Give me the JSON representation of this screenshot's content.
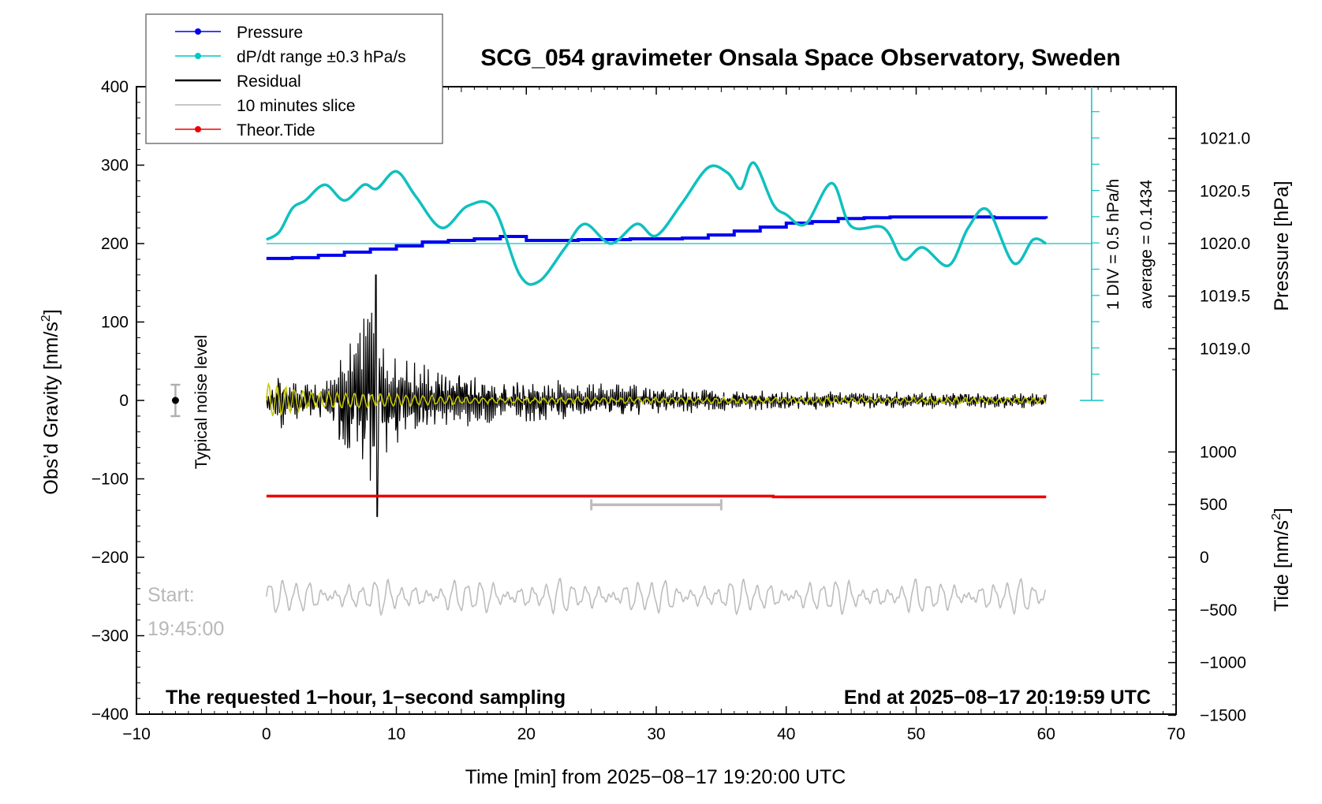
{
  "chart_data": {
    "type": "line",
    "title": "SCG_054 gravimeter Onsala Space Observatory, Sweden",
    "xlabel": "Time [min] from 2025−08−17 19:20:00 UTC",
    "ylabel_left_main": "Obs’d Gravity [nm/s",
    "ylabel_left_sup": "2",
    "ylabel_left_end": "]",
    "ylabel_right_top": "Pressure [hPa]",
    "ylabel_right_bottom_main": "Tide [nm/s",
    "ylabel_right_bottom_sup": "2",
    "ylabel_right_bottom_end": "]",
    "xlim": [
      -10,
      70
    ],
    "ylim": [
      -400,
      400
    ],
    "x_ticks": [
      "−10",
      "0",
      "10",
      "20",
      "30",
      "40",
      "50",
      "60",
      "70"
    ],
    "y_ticks": [
      "400",
      "300",
      "200",
      "100",
      "0",
      "−100",
      "−200",
      "−300",
      "−400"
    ],
    "pressure_ticks": [
      "1021.0",
      "1020.5",
      "1020.0",
      "1019.5",
      "1019.0"
    ],
    "tide_ticks": [
      "1000",
      "500",
      "0",
      "−500",
      "−1000",
      "−1500"
    ],
    "legend": [
      {
        "label": "Pressure",
        "color": "#0000ee",
        "marker": true
      },
      {
        "label": "dP/dt range ±0.3 hPa/s",
        "color": "#00c8c8",
        "marker": true
      },
      {
        "label": "Residual",
        "color": "#000000",
        "marker": false
      },
      {
        "label": "10 minutes slice",
        "color": "#b4b4b4",
        "marker": false
      },
      {
        "label": "Theor.Tide",
        "color": "#ee0000",
        "marker": true
      }
    ],
    "colors": {
      "pressure": "#0000ee",
      "dpdt": "#10c0c0",
      "residual": "#000000",
      "filtered": "#c8c800",
      "slice": "#bdbdbd",
      "tide": "#ee0000"
    },
    "pressure_series": {
      "name": "Pressure",
      "x": [
        0,
        2,
        4,
        6,
        8,
        10,
        12,
        14,
        16,
        18,
        20,
        22,
        24,
        26,
        28,
        30,
        32,
        34,
        36,
        38,
        40,
        42,
        44,
        46,
        48,
        50,
        52,
        54,
        56,
        58,
        60
      ],
      "values": [
        181,
        182,
        185,
        189,
        193,
        197,
        202,
        204,
        206,
        209,
        204,
        204,
        205,
        205,
        206,
        206,
        207,
        211,
        216,
        221,
        226,
        228,
        232,
        233,
        234,
        234,
        234,
        234,
        233,
        233,
        232
      ]
    },
    "dpdt_series": {
      "name": "dP/dt range ±0.3 hPa/s",
      "x": [
        0,
        1,
        2,
        3,
        4.5,
        6,
        7.5,
        8.5,
        10,
        11.5,
        13.5,
        15.5,
        17.5,
        19.5,
        21,
        23,
        24.5,
        26.5,
        28.5,
        30,
        32,
        34,
        35.5,
        36.5,
        37.5,
        39,
        40,
        41.5,
        43.5,
        45,
        47.5,
        49,
        50.5,
        52.5,
        54,
        55.5,
        57.5,
        59,
        60
      ],
      "values": [
        205,
        215,
        245,
        255,
        275,
        255,
        275,
        270,
        292,
        260,
        220,
        248,
        245,
        160,
        152,
        195,
        225,
        200,
        225,
        210,
        252,
        297,
        290,
        270,
        303,
        250,
        237,
        225,
        277,
        222,
        220,
        180,
        195,
        172,
        220,
        243,
        175,
        205,
        200
      ]
    },
    "dpdt_reference_level": 200,
    "residual_series": {
      "name": "Residual",
      "x_range": [
        0,
        60
      ],
      "center": 0,
      "max": 160,
      "min": -148
    },
    "tide_series": {
      "name": "Theor.Tide",
      "x": [
        0,
        39,
        39,
        60
      ],
      "values": [
        -122,
        -122,
        -123,
        -123
      ]
    },
    "slice_bar": {
      "name": "10 minutes slice",
      "x": [
        25,
        35
      ],
      "y": -133
    },
    "noise_marker": {
      "x": -7,
      "y": 0,
      "low": -20,
      "high": 20
    },
    "side_scale": {
      "label1": "1 DIV = 0.5 hPa/h",
      "label2": "average = 0.1434"
    },
    "annotations": {
      "noise_label": "Typical noise level",
      "start_label": "Start:",
      "start_time": "19:45:00",
      "bottom_left": "The requested 1−hour, 1−second sampling",
      "bottom_right": "End at 2025−08−17 20:19:59 UTC"
    }
  }
}
